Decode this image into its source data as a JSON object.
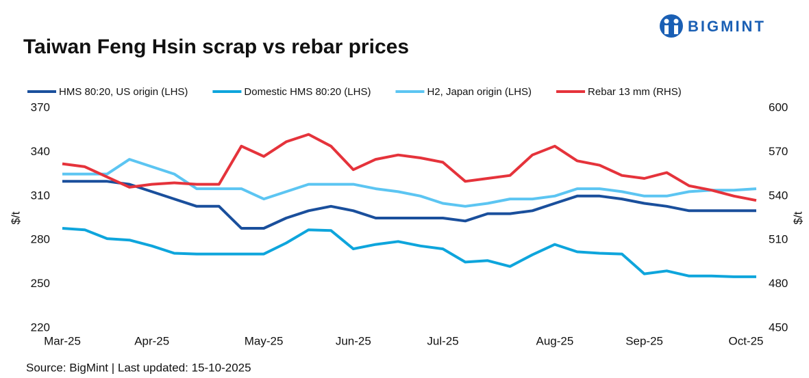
{
  "chart_data": {
    "type": "line",
    "title": "Taiwan Feng Hsin scrap vs rebar prices",
    "brand": "BIGMINT",
    "source": "Source: BigMint |  Last updated: 15-10-2025",
    "ylabel": "$/t",
    "y2label": "$/t",
    "categories": [
      "Mar-25",
      null,
      null,
      null,
      "Apr-25",
      null,
      null,
      null,
      null,
      "May-25",
      null,
      null,
      null,
      "Jun-25",
      null,
      null,
      null,
      "Jul-25",
      null,
      null,
      null,
      null,
      "Aug-25",
      null,
      null,
      null,
      "Sep-25",
      null,
      null,
      null,
      null,
      "Oct-25"
    ],
    "ylim": [
      220,
      370
    ],
    "yticks": [
      220,
      250,
      280,
      310,
      340,
      370
    ],
    "y2lim": [
      450,
      600
    ],
    "y2ticks": [
      450,
      480,
      510,
      540,
      570,
      600
    ],
    "series": [
      {
        "name": "HMS 80:20, US origin (LHS)",
        "color": "#1a4f9c",
        "values": [
          320,
          320,
          320,
          318,
          313,
          308,
          303,
          303,
          288,
          288,
          295,
          300,
          303,
          300,
          295,
          295,
          295,
          295,
          293,
          298,
          298,
          300,
          305,
          310,
          310,
          308,
          305,
          303,
          300,
          300,
          300,
          300
        ]
      },
      {
        "name": "Domestic HMS 80:20 (LHS)",
        "color": "#0ea5dc",
        "values": [
          288,
          287,
          281,
          280,
          276,
          271,
          270.5,
          270.5,
          270.5,
          270.5,
          278,
          287,
          286.5,
          274,
          277,
          279,
          276,
          274,
          265,
          266,
          262,
          270,
          277,
          272,
          271,
          270.5,
          257,
          259,
          255.5,
          255.5,
          255,
          255
        ]
      },
      {
        "name": "H2, Japan origin (LHS)",
        "color": "#5cc5f2",
        "values": [
          325,
          325,
          325,
          335,
          330,
          325,
          315,
          315,
          315,
          308,
          313,
          318,
          318,
          318,
          315,
          313,
          310,
          305,
          303,
          305,
          308,
          308,
          310,
          315,
          315,
          313,
          310,
          310,
          313,
          314,
          314,
          315
        ]
      },
      {
        "name": "Rebar 13 mm (RHS)",
        "color": "#e5333b",
        "axis": "y2",
        "values": [
          562,
          560,
          553,
          546,
          548,
          549,
          548,
          548,
          574,
          567,
          577,
          582,
          574,
          558,
          565,
          568,
          566,
          563,
          550,
          552,
          554,
          568,
          574,
          564,
          561,
          554,
          552,
          556,
          547,
          544,
          540,
          537
        ]
      }
    ]
  }
}
